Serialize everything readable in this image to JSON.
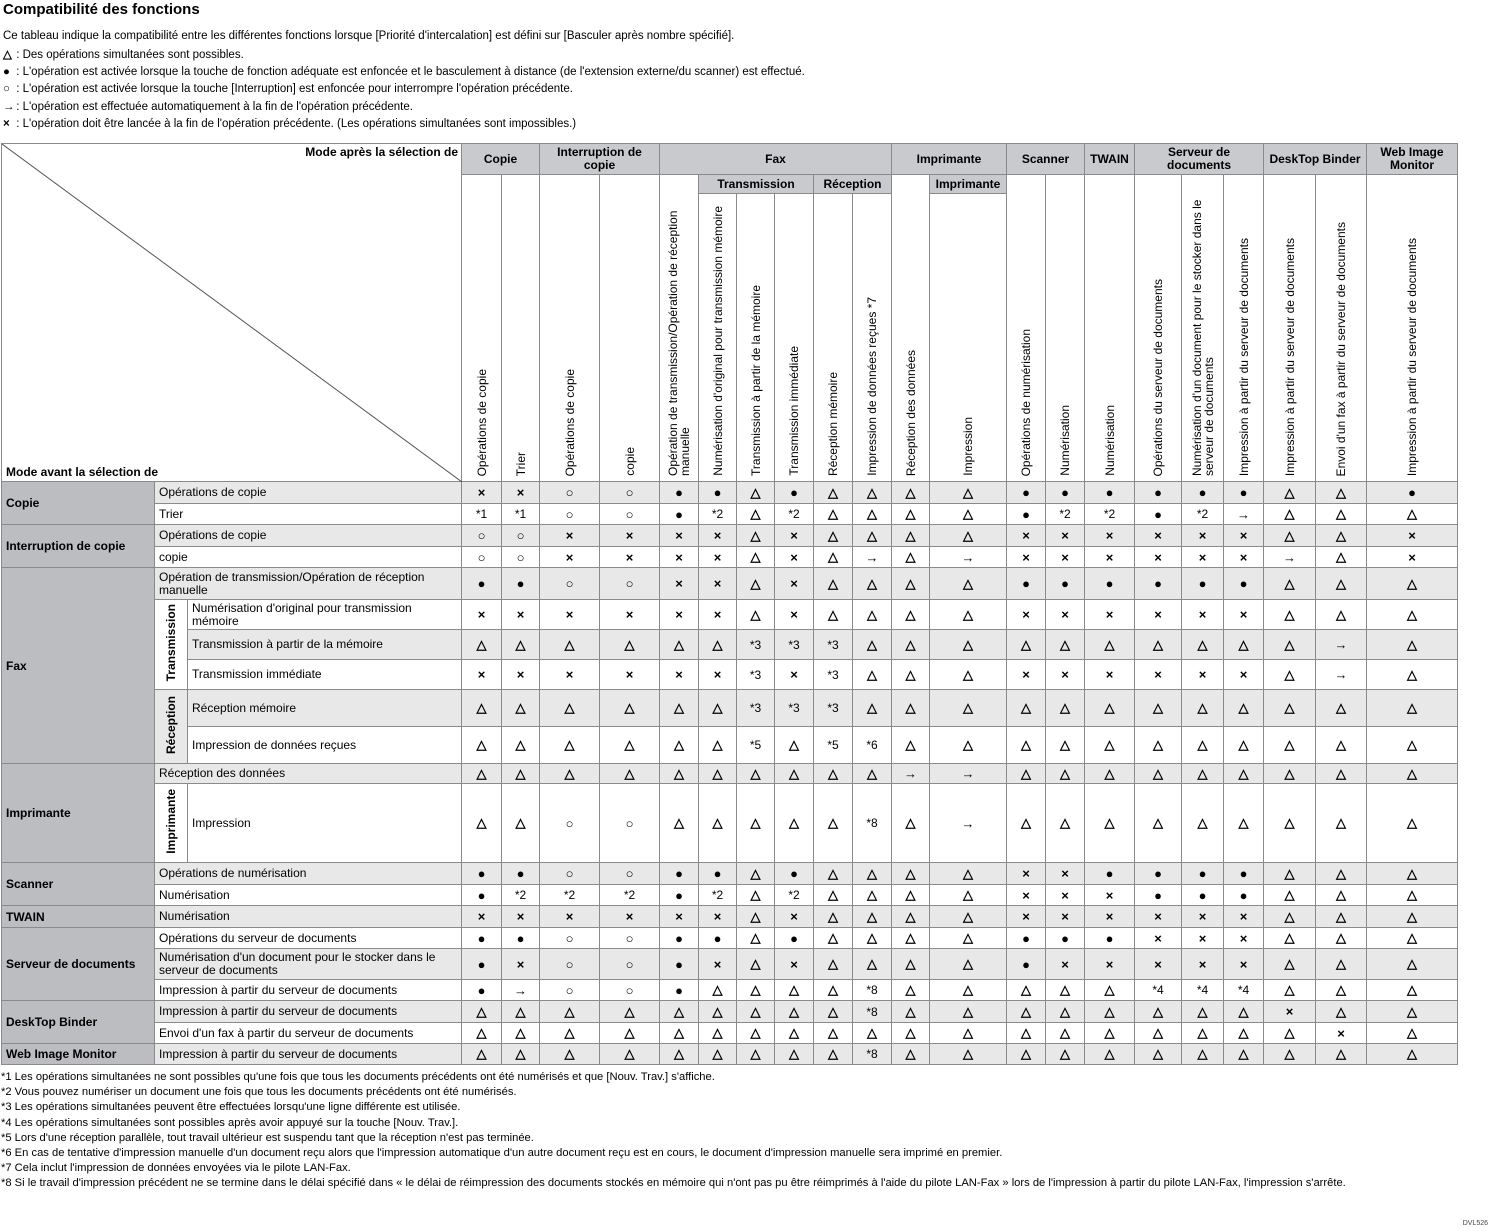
{
  "title": "Compatibilité des fonctions",
  "intro": "Ce tableau indique la compatibilité entre les différentes fonctions lorsque [Priorité d'intercalation] est défini sur [Basculer après nombre spécifié].",
  "legend": [
    {
      "symbol": "△",
      "text": " : Des opérations simultanées sont possibles."
    },
    {
      "symbol": "●",
      "text": " : L'opération est activée lorsque la touche de fonction adéquate est enfoncée et le basculement à distance (de l'extension externe/du scanner) est effectué."
    },
    {
      "symbol": "○",
      "text": " : L'opération est activée lorsque la touche [Interruption] est enfoncée pour interrompre l'opération précédente."
    },
    {
      "symbol": "→",
      "text": " : L'opération est effectuée automatiquement à la fin de l'opération précédente."
    },
    {
      "symbol": "×",
      "text": " : L'opération doit être lancée à la fin de l'opération précédente. (Les opérations simultanées sont impossibles.)"
    }
  ],
  "corner": {
    "after": "Mode après la sélection de",
    "before": "Mode avant la sélection de"
  },
  "columns": [
    {
      "group": "Copie",
      "subgroup": null,
      "label": "Opérations de copie"
    },
    {
      "group": "Copie",
      "subgroup": null,
      "label": "Trier"
    },
    {
      "group": "Interruption de copie",
      "subgroup": null,
      "label": "Opérations de copie"
    },
    {
      "group": "Interruption de copie",
      "subgroup": null,
      "label": "copie"
    },
    {
      "group": "Fax",
      "subgroup": null,
      "label": "Opération de transmission/Opération de réception manuelle"
    },
    {
      "group": "Fax",
      "subgroup": "Transmission",
      "label": "Numérisation d'original pour transmission mémoire"
    },
    {
      "group": "Fax",
      "subgroup": "Transmission",
      "label": "Transmission à partir de la mémoire"
    },
    {
      "group": "Fax",
      "subgroup": "Transmission",
      "label": "Transmission immédiate"
    },
    {
      "group": "Fax",
      "subgroup": "Réception",
      "label": "Réception mémoire"
    },
    {
      "group": "Fax",
      "subgroup": "Réception",
      "label": "Impression de données reçues *7"
    },
    {
      "group": "Imprimante",
      "subgroup": null,
      "label": "Réception des données"
    },
    {
      "group": "Imprimante",
      "subgroup": "Imprimante",
      "label": "Impression"
    },
    {
      "group": "Scanner",
      "subgroup": null,
      "label": "Opérations de numérisation"
    },
    {
      "group": "Scanner",
      "subgroup": null,
      "label": "Numérisation"
    },
    {
      "group": "TWAIN",
      "subgroup": null,
      "label": "Numérisation"
    },
    {
      "group": "Serveur de documents",
      "subgroup": null,
      "label": "Opérations du serveur de documents"
    },
    {
      "group": "Serveur de documents",
      "subgroup": null,
      "label": "Numérisation d'un document pour le stocker dans le serveur de documents"
    },
    {
      "group": "Serveur de documents",
      "subgroup": null,
      "label": "Impression à partir du serveur de documents"
    },
    {
      "group": "DeskTop Binder",
      "subgroup": null,
      "label": "Impression à partir du serveur de documents"
    },
    {
      "group": "DeskTop Binder",
      "subgroup": null,
      "label": "Envoi d'un fax à partir du serveur de documents"
    },
    {
      "group": "Web Image Monitor",
      "subgroup": null,
      "label": "Impression à partir du serveur de documents"
    }
  ],
  "rows": [
    {
      "group": "Copie",
      "subgroup": null,
      "label": "Opérations de copie",
      "cells": [
        "×",
        "×",
        "○",
        "○",
        "●",
        "●",
        "△",
        "●",
        "△",
        "△",
        "△",
        "△",
        "●",
        "●",
        "●",
        "●",
        "●",
        "●",
        "△",
        "△",
        "●"
      ]
    },
    {
      "group": "Copie",
      "subgroup": null,
      "label": "Trier",
      "cells": [
        "*1",
        "*1",
        "○",
        "○",
        "●",
        "*2",
        "△",
        "*2",
        "△",
        "△",
        "△",
        "△",
        "●",
        "*2",
        "*2",
        "●",
        "*2",
        "→",
        "△",
        "△",
        "△"
      ]
    },
    {
      "group": "Interruption de copie",
      "subgroup": null,
      "label": "Opérations de copie",
      "cells": [
        "○",
        "○",
        "×",
        "×",
        "×",
        "×",
        "△",
        "×",
        "△",
        "△",
        "△",
        "△",
        "×",
        "×",
        "×",
        "×",
        "×",
        "×",
        "△",
        "△",
        "×"
      ]
    },
    {
      "group": "Interruption de copie",
      "subgroup": null,
      "label": "copie",
      "cells": [
        "○",
        "○",
        "×",
        "×",
        "×",
        "×",
        "△",
        "×",
        "△",
        "→",
        "△",
        "→",
        "×",
        "×",
        "×",
        "×",
        "×",
        "×",
        "→",
        "△",
        "×"
      ]
    },
    {
      "group": "Fax",
      "subgroup": null,
      "label": "Opération de transmission/Opération de réception manuelle",
      "cells": [
        "●",
        "●",
        "○",
        "○",
        "×",
        "×",
        "△",
        "×",
        "△",
        "△",
        "△",
        "△",
        "●",
        "●",
        "●",
        "●",
        "●",
        "●",
        "△",
        "△",
        "△"
      ]
    },
    {
      "group": "Fax",
      "subgroup": "Transmission",
      "label": "Numérisation d'original pour transmission mémoire",
      "cells": [
        "×",
        "×",
        "×",
        "×",
        "×",
        "×",
        "△",
        "×",
        "△",
        "△",
        "△",
        "△",
        "×",
        "×",
        "×",
        "×",
        "×",
        "×",
        "△",
        "△",
        "△"
      ]
    },
    {
      "group": "Fax",
      "subgroup": "Transmission",
      "label": "Transmission à partir de la mémoire",
      "cells": [
        "△",
        "△",
        "△",
        "△",
        "△",
        "△",
        "*3",
        "*3",
        "*3",
        "△",
        "△",
        "△",
        "△",
        "△",
        "△",
        "△",
        "△",
        "△",
        "△",
        "→",
        "△"
      ]
    },
    {
      "group": "Fax",
      "subgroup": "Transmission",
      "label": "Transmission immédiate",
      "cells": [
        "×",
        "×",
        "×",
        "×",
        "×",
        "×",
        "*3",
        "×",
        "*3",
        "△",
        "△",
        "△",
        "×",
        "×",
        "×",
        "×",
        "×",
        "×",
        "△",
        "→",
        "△"
      ]
    },
    {
      "group": "Fax",
      "subgroup": "Réception",
      "label": "Réception mémoire",
      "cells": [
        "△",
        "△",
        "△",
        "△",
        "△",
        "△",
        "*3",
        "*3",
        "*3",
        "△",
        "△",
        "△",
        "△",
        "△",
        "△",
        "△",
        "△",
        "△",
        "△",
        "△",
        "△"
      ]
    },
    {
      "group": "Fax",
      "subgroup": "Réception",
      "label": "Impression de données reçues",
      "cells": [
        "△",
        "△",
        "△",
        "△",
        "△",
        "△",
        "*5",
        "△",
        "*5",
        "*6",
        "△",
        "△",
        "△",
        "△",
        "△",
        "△",
        "△",
        "△",
        "△",
        "△",
        "△"
      ]
    },
    {
      "group": "Imprimante",
      "subgroup": null,
      "label": "Réception des données",
      "cells": [
        "△",
        "△",
        "△",
        "△",
        "△",
        "△",
        "△",
        "△",
        "△",
        "△",
        "→",
        "→",
        "△",
        "△",
        "△",
        "△",
        "△",
        "△",
        "△",
        "△",
        "△"
      ]
    },
    {
      "group": "Imprimante",
      "subgroup": "Imprimante",
      "label": "Impression",
      "cells": [
        "△",
        "△",
        "○",
        "○",
        "△",
        "△",
        "△",
        "△",
        "△",
        "*8",
        "△",
        "→",
        "△",
        "△",
        "△",
        "△",
        "△",
        "△",
        "△",
        "△",
        "△"
      ]
    },
    {
      "group": "Scanner",
      "subgroup": null,
      "label": "Opérations de numérisation",
      "cells": [
        "●",
        "●",
        "○",
        "○",
        "●",
        "●",
        "△",
        "●",
        "△",
        "△",
        "△",
        "△",
        "×",
        "×",
        "●",
        "●",
        "●",
        "●",
        "△",
        "△",
        "△"
      ]
    },
    {
      "group": "Scanner",
      "subgroup": null,
      "label": "Numérisation",
      "cells": [
        "●",
        "*2",
        "*2",
        "*2",
        "●",
        "*2",
        "△",
        "*2",
        "△",
        "△",
        "△",
        "△",
        "×",
        "×",
        "×",
        "●",
        "●",
        "●",
        "△",
        "△",
        "△"
      ]
    },
    {
      "group": "TWAIN",
      "subgroup": null,
      "label": "Numérisation",
      "cells": [
        "×",
        "×",
        "×",
        "×",
        "×",
        "×",
        "△",
        "×",
        "△",
        "△",
        "△",
        "△",
        "×",
        "×",
        "×",
        "×",
        "×",
        "×",
        "△",
        "△",
        "△"
      ]
    },
    {
      "group": "Serveur de documents",
      "subgroup": null,
      "label": "Opérations du serveur de documents",
      "cells": [
        "●",
        "●",
        "○",
        "○",
        "●",
        "●",
        "△",
        "●",
        "△",
        "△",
        "△",
        "△",
        "●",
        "●",
        "●",
        "×",
        "×",
        "×",
        "△",
        "△",
        "△"
      ]
    },
    {
      "group": "Serveur de documents",
      "subgroup": null,
      "label": "Numérisation d'un document pour le stocker dans le serveur de documents",
      "cells": [
        "●",
        "×",
        "○",
        "○",
        "●",
        "×",
        "△",
        "×",
        "△",
        "△",
        "△",
        "△",
        "●",
        "×",
        "×",
        "×",
        "×",
        "×",
        "△",
        "△",
        "△"
      ]
    },
    {
      "group": "Serveur de documents",
      "subgroup": null,
      "label": "Impression à partir du serveur de documents",
      "cells": [
        "●",
        "→",
        "○",
        "○",
        "●",
        "△",
        "△",
        "△",
        "△",
        "*8",
        "△",
        "△",
        "△",
        "△",
        "△",
        "*4",
        "*4",
        "*4",
        "△",
        "△",
        "△"
      ]
    },
    {
      "group": "DeskTop Binder",
      "subgroup": null,
      "label": "Impression à partir du serveur de documents",
      "cells": [
        "△",
        "△",
        "△",
        "△",
        "△",
        "△",
        "△",
        "△",
        "△",
        "*8",
        "△",
        "△",
        "△",
        "△",
        "△",
        "△",
        "△",
        "△",
        "×",
        "△",
        "△"
      ]
    },
    {
      "group": "DeskTop Binder",
      "subgroup": null,
      "label": "Envoi d'un fax à partir du serveur de documents",
      "cells": [
        "△",
        "△",
        "△",
        "△",
        "△",
        "△",
        "△",
        "△",
        "△",
        "△",
        "△",
        "△",
        "△",
        "△",
        "△",
        "△",
        "△",
        "△",
        "△",
        "×",
        "△"
      ]
    },
    {
      "group": "Web Image Monitor",
      "subgroup": null,
      "label": "Impression à partir du serveur de documents",
      "cells": [
        "△",
        "△",
        "△",
        "△",
        "△",
        "△",
        "△",
        "△",
        "△",
        "*8",
        "△",
        "△",
        "△",
        "△",
        "△",
        "△",
        "△",
        "△",
        "△",
        "△",
        "△"
      ]
    }
  ],
  "footnotes": [
    "*1 Les opérations simultanées ne sont possibles qu'une fois que tous les documents précédents ont été numérisés et que [Nouv. Trav.] s'affiche.",
    "*2 Vous pouvez numériser un document une fois que tous les documents précédents ont été numérisés.",
    "*3 Les opérations simultanées peuvent être effectuées lorsqu'une ligne différente est utilisée.",
    "*4 Les opérations simultanées sont possibles après avoir appuyé sur la touche [Nouv. Trav.].",
    "*5 Lors d'une réception parallèle, tout travail ultérieur est suspendu tant que la réception n'est pas terminée.",
    "*6 En cas de tentative d'impression manuelle d'un document reçu alors que l'impression automatique d'un autre document reçu est en cours, le document d'impression manuelle sera imprimé en premier.",
    "*7 Cela inclut l'impression de données envoyées via le pilote LAN-Fax.",
    "*8 Si le travail d'impression précédent ne se termine dans le délai spécifié dans « le délai de réimpression des documents stockés en mémoire qui n'ont pas pu être réimprimés à l'aide du pilote LAN-Fax » lors de l'impression à partir du pilote LAN-Fax, l'impression s'arrête."
  ],
  "figure_code": "DVL526"
}
